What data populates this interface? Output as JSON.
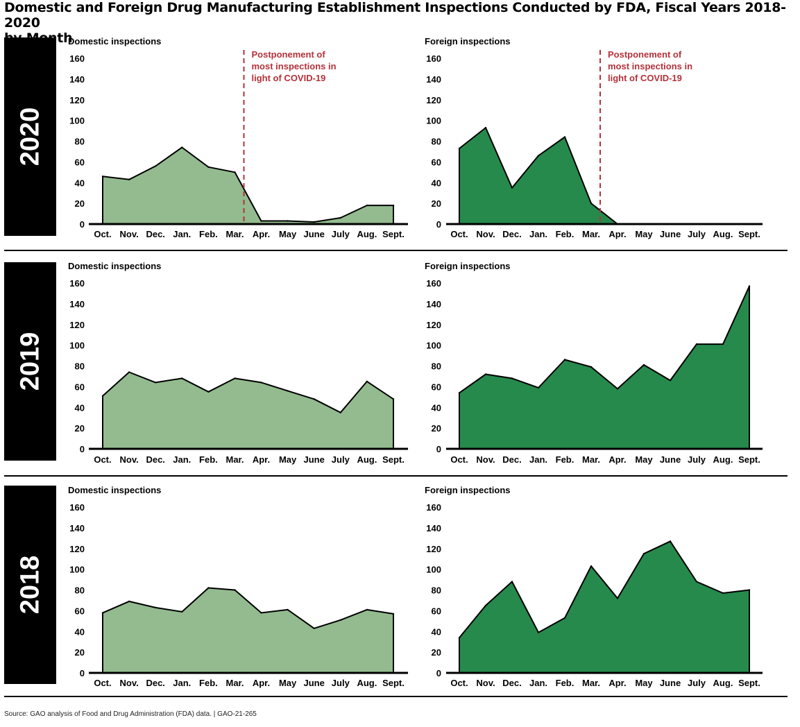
{
  "title_line1": "Domestic and Foreign Drug Manufacturing Establishment Inspections Conducted by FDA, Fiscal Years 2018-2020",
  "title_line2": "by Month",
  "source": "Source:  GAO analysis of Food and Drug Administration (FDA) data.  |  GAO-21-265",
  "colors": {
    "domestic_fill": "#93bb8f",
    "foreign_fill": "#268a4d",
    "annotation": "#b5313a",
    "line": "#000000"
  },
  "chart_data": [
    {
      "type": "area",
      "year": "2020",
      "title": "Domestic inspections",
      "color_key": "domestic_fill",
      "categories": [
        "Oct.",
        "Nov.",
        "Dec.",
        "Jan.",
        "Feb.",
        "Mar.",
        "Apr.",
        "May",
        "June",
        "July",
        "Aug.",
        "Sept."
      ],
      "values": [
        46,
        43,
        56,
        74,
        55,
        50,
        3,
        3,
        2,
        6,
        18,
        18
      ],
      "yticks": [
        0,
        20,
        40,
        60,
        80,
        100,
        120,
        140,
        160
      ],
      "ylim": [
        0,
        160
      ],
      "annotation": {
        "text": [
          "Postponement of",
          "most inspections in",
          "light of COVID-19"
        ],
        "between": [
          "Mar.",
          "Apr."
        ]
      }
    },
    {
      "type": "area",
      "year": "2020",
      "title": "Foreign inspections",
      "color_key": "foreign_fill",
      "categories": [
        "Oct.",
        "Nov.",
        "Dec.",
        "Jan.",
        "Feb.",
        "Mar.",
        "Apr.",
        "May",
        "June",
        "July",
        "Aug.",
        "Sept."
      ],
      "values": [
        73,
        93,
        35,
        66,
        84,
        20,
        0,
        0,
        0,
        0,
        0,
        0
      ],
      "yticks": [
        0,
        20,
        40,
        60,
        80,
        100,
        120,
        140,
        160
      ],
      "ylim": [
        0,
        160
      ],
      "annotation": {
        "text": [
          "Postponement of",
          "most inspections in",
          "light of COVID-19"
        ],
        "between": [
          "Mar.",
          "Apr."
        ]
      }
    },
    {
      "type": "area",
      "year": "2019",
      "title": "Domestic inspections",
      "color_key": "domestic_fill",
      "categories": [
        "Oct.",
        "Nov.",
        "Dec.",
        "Jan.",
        "Feb.",
        "Mar.",
        "Apr.",
        "May",
        "June",
        "July",
        "Aug.",
        "Sept."
      ],
      "values": [
        51,
        74,
        64,
        68,
        55,
        68,
        64,
        56,
        48,
        35,
        65,
        48
      ],
      "yticks": [
        0,
        20,
        40,
        60,
        80,
        100,
        120,
        140,
        160
      ],
      "ylim": [
        0,
        160
      ]
    },
    {
      "type": "area",
      "year": "2019",
      "title": "Foreign inspections",
      "color_key": "foreign_fill",
      "categories": [
        "Oct.",
        "Nov.",
        "Dec.",
        "Jan.",
        "Feb.",
        "Mar.",
        "Apr.",
        "May",
        "June",
        "July",
        "Aug.",
        "Sept."
      ],
      "values": [
        54,
        72,
        68,
        59,
        86,
        79,
        58,
        81,
        66,
        101,
        101,
        157
      ],
      "yticks": [
        0,
        20,
        40,
        60,
        80,
        100,
        120,
        140,
        160
      ],
      "ylim": [
        0,
        160
      ]
    },
    {
      "type": "area",
      "year": "2018",
      "title": "Domestic inspections",
      "color_key": "domestic_fill",
      "categories": [
        "Oct.",
        "Nov.",
        "Dec.",
        "Jan.",
        "Feb.",
        "Mar.",
        "Apr.",
        "May",
        "June",
        "July",
        "Aug.",
        "Sept."
      ],
      "values": [
        58,
        69,
        63,
        59,
        82,
        80,
        58,
        61,
        43,
        51,
        61,
        57
      ],
      "yticks": [
        0,
        20,
        40,
        60,
        80,
        100,
        120,
        140,
        160
      ],
      "ylim": [
        0,
        160
      ]
    },
    {
      "type": "area",
      "year": "2018",
      "title": "Foreign inspections",
      "color_key": "foreign_fill",
      "categories": [
        "Oct.",
        "Nov.",
        "Dec.",
        "Jan.",
        "Feb.",
        "Mar.",
        "Apr.",
        "May",
        "June",
        "July",
        "Aug.",
        "Sept."
      ],
      "values": [
        34,
        65,
        88,
        39,
        53,
        103,
        72,
        115,
        127,
        88,
        77,
        80
      ],
      "yticks": [
        0,
        20,
        40,
        60,
        80,
        100,
        120,
        140,
        160
      ],
      "ylim": [
        0,
        160
      ]
    }
  ]
}
